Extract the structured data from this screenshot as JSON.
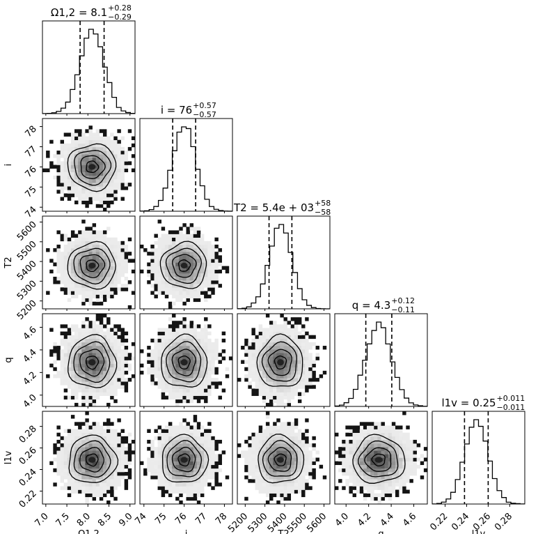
{
  "chart_data": {
    "type": "corner",
    "parameters": [
      {
        "label": "Ω1,2",
        "median": 8.1,
        "median_text": "8.1",
        "err_plus": "+0.28",
        "err_minus": "−0.29",
        "title_prefix": "Ω1,2 = ",
        "std": 0.285,
        "range": [
          6.92,
          9.12
        ],
        "ticks": [
          7.0,
          7.5,
          8.0,
          8.5,
          9.0
        ],
        "tick_labels": [
          "7.0",
          "7.5",
          "8.0",
          "8.5",
          "9.0"
        ]
      },
      {
        "label": "i",
        "median": 76,
        "median_text": "76",
        "err_plus": "+0.57",
        "err_minus": "−0.57",
        "title_prefix": "i = ",
        "std": 0.57,
        "range": [
          73.8,
          78.4
        ],
        "ticks": [
          74,
          75,
          76,
          77,
          78
        ],
        "tick_labels": [
          "74",
          "75",
          "76",
          "77",
          "78"
        ]
      },
      {
        "label": "T2",
        "median": 5379,
        "median_text": "5.4e + 03",
        "err_plus": "+58",
        "err_minus": "−58",
        "title_prefix": "T2 = ",
        "std": 58,
        "range": [
          5160,
          5630
        ],
        "ticks": [
          5200,
          5300,
          5400,
          5500,
          5600
        ],
        "tick_labels": [
          "5200",
          "5300",
          "5400",
          "5500",
          "5600"
        ]
      },
      {
        "label": "q",
        "median": 4.29,
        "median_text": "4.3",
        "err_plus": "+0.12",
        "err_minus": "−0.11",
        "title_prefix": "q = ",
        "std": 0.115,
        "range": [
          3.9,
          4.72
        ],
        "ticks": [
          4.0,
          4.2,
          4.4,
          4.6
        ],
        "tick_labels": [
          "4.0",
          "4.2",
          "4.4",
          "4.6"
        ]
      },
      {
        "label": "l1v",
        "median": 0.249,
        "median_text": "0.25",
        "err_plus": "+0.011",
        "err_minus": "−0.011",
        "title_prefix": "l1v = ",
        "std": 0.011,
        "range": [
          0.208,
          0.294
        ],
        "ticks": [
          0.22,
          0.24,
          0.26,
          0.28
        ],
        "tick_labels": [
          "0.22",
          "0.24",
          "0.26",
          "0.28"
        ]
      }
    ],
    "grid": false
  }
}
